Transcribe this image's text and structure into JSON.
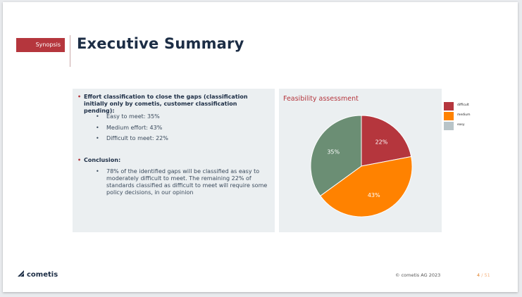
{
  "header": {
    "tag": "Synopsis",
    "title": "Executive Summary"
  },
  "left_panel": {
    "bullet1": "Effort classification to close the gaps (classification initially only by cometis, customer classification pending):",
    "sub1": [
      "Easy to meet: 35%",
      "Medium effort: 43%",
      "Difficult to meet: 22%"
    ],
    "bullet2": "Conclusion:",
    "sub2": [
      "78% of the identified gaps will be classified as easy to moderately difficult to meet. The remaining 22% of standards classified as difficult to meet will require some policy decisions, in our opinion"
    ]
  },
  "chart_data": {
    "type": "pie",
    "title": "Feasibility assessment",
    "categories": [
      "difficult",
      "medium",
      "easy"
    ],
    "values": [
      22,
      43,
      35
    ],
    "labels": [
      "22%",
      "43%",
      "35%"
    ],
    "colors": [
      "#b5363d",
      "#ff8200",
      "#6b8e74"
    ],
    "legend_colors": [
      "#b5363d",
      "#ff8200",
      "#b8c4c8"
    ],
    "legend_placement": "right"
  },
  "footer": {
    "logo": "cometis",
    "copyright": "© cometis AG 2023",
    "page": "4",
    "total": "/ 51"
  }
}
